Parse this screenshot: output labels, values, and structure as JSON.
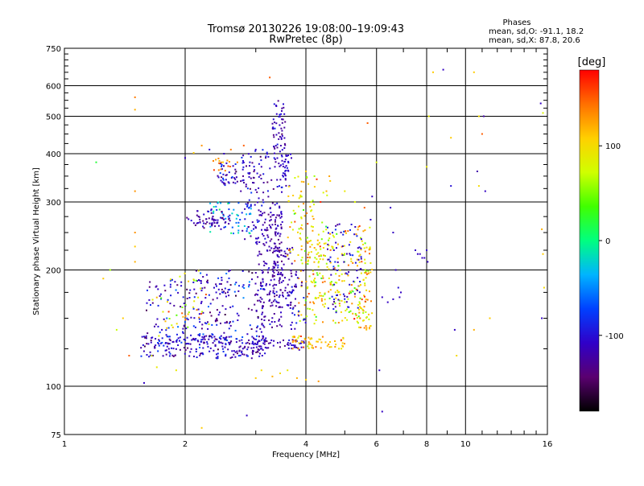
{
  "chart_data": {
    "type": "scatter",
    "title": "Tromsø 20130226 19:08:00–19:09:43",
    "subtitle": "RwPretec (8p)",
    "xlabel": "Frequency [MHz]",
    "ylabel": "Stationary phase Virtual Height [km]",
    "x_scale": "log",
    "y_scale": "log",
    "xlim": [
      1,
      16
    ],
    "ylim": [
      75,
      750
    ],
    "x_ticks": [
      1,
      2,
      4,
      6,
      8,
      10,
      16
    ],
    "x_tick_labels": [
      "1",
      "2",
      "4",
      "6",
      "8",
      "10",
      "16"
    ],
    "x_minor_ticks": [
      3,
      5,
      7,
      9,
      11,
      12,
      13,
      14,
      15
    ],
    "y_ticks": [
      75,
      100,
      200,
      300,
      400,
      500,
      600,
      750
    ],
    "y_tick_labels": [
      "75",
      "100",
      "200",
      "300",
      "400",
      "500",
      "600",
      "750"
    ],
    "y_minor_ticks": [
      125,
      150,
      175,
      225,
      250,
      275,
      325,
      350,
      375,
      425,
      450,
      475,
      525,
      550,
      575,
      625,
      650,
      675,
      700,
      725
    ],
    "grid": true,
    "phases_title": "Phases",
    "phases_o": "mean, sd,O: -91.1, 18.2",
    "phases_x": "mean, sd,X:  87.8, 20.6",
    "colorbar": {
      "label": "[deg]",
      "range": [
        -180,
        180
      ],
      "ticks": [
        100,
        0,
        -100
      ],
      "tick_labels": [
        "100",
        "0",
        "-100"
      ]
    },
    "series": [
      {
        "points": [
          [
            1.5,
            560,
            140
          ],
          [
            1.5,
            520,
            120
          ],
          [
            1.5,
            320,
            130
          ],
          [
            1.5,
            250,
            130
          ],
          [
            1.5,
            230,
            110
          ],
          [
            1.5,
            210,
            120
          ],
          [
            1.2,
            380,
            20
          ],
          [
            1.25,
            190,
            110
          ],
          [
            1.3,
            200,
            60
          ],
          [
            1.35,
            140,
            70
          ],
          [
            1.4,
            150,
            110
          ],
          [
            1.45,
            120,
            150
          ],
          [
            1.65,
            120,
            80
          ],
          [
            1.7,
            112,
            90
          ],
          [
            1.72,
            135,
            80
          ],
          [
            1.75,
            140,
            -110
          ],
          [
            1.8,
            150,
            -60
          ],
          [
            1.9,
            110,
            90
          ],
          [
            2.0,
            390,
            -110
          ],
          [
            2.1,
            402,
            110
          ],
          [
            2.2,
            420,
            130
          ],
          [
            2.3,
            410,
            -100
          ],
          [
            2.5,
            400,
            -110
          ],
          [
            2.6,
            410,
            140
          ],
          [
            2.7,
            380,
            130
          ],
          [
            2.8,
            420,
            150
          ],
          [
            2.9,
            380,
            -100
          ],
          [
            3.0,
            410,
            -110
          ],
          [
            3.1,
            370,
            -120
          ],
          [
            3.25,
            630,
            150
          ],
          [
            2.85,
            84,
            -110
          ],
          [
            2.2,
            78,
            110
          ],
          [
            3.0,
            105,
            110
          ],
          [
            3.1,
            110,
            100
          ],
          [
            3.3,
            106,
            120
          ],
          [
            3.45,
            108,
            100
          ],
          [
            3.6,
            110,
            90
          ],
          [
            3.8,
            105,
            120
          ],
          [
            4.0,
            104,
            110
          ],
          [
            4.3,
            103,
            130
          ],
          [
            1.58,
            102,
            -110
          ],
          [
            4.0,
            360,
            110
          ],
          [
            4.2,
            350,
            60
          ],
          [
            4.35,
            300,
            170
          ],
          [
            4.5,
            320,
            120
          ],
          [
            4.6,
            340,
            110
          ],
          [
            5.0,
            320,
            90
          ],
          [
            5.3,
            300,
            80
          ],
          [
            5.6,
            290,
            150
          ],
          [
            5.8,
            270,
            -110
          ],
          [
            5.85,
            310,
            -110
          ],
          [
            5.7,
            480,
            150
          ],
          [
            6.0,
            380,
            80
          ],
          [
            6.5,
            290,
            -110
          ],
          [
            6.6,
            250,
            -110
          ],
          [
            6.2,
            170,
            -110
          ],
          [
            6.4,
            165,
            -110
          ],
          [
            6.6,
            168,
            -110
          ],
          [
            6.9,
            175,
            -110
          ],
          [
            6.8,
            180,
            -100
          ],
          [
            6.85,
            170,
            -110
          ],
          [
            6.2,
            86,
            -110
          ],
          [
            6.1,
            110,
            -110
          ],
          [
            6.7,
            200,
            -110
          ],
          [
            8.0,
            370,
            90
          ],
          [
            8.1,
            500,
            90
          ],
          [
            8.3,
            650,
            110
          ],
          [
            8.8,
            660,
            -110
          ],
          [
            9.2,
            440,
            110
          ],
          [
            9.2,
            330,
            -100
          ],
          [
            9.4,
            140,
            -110
          ],
          [
            9.5,
            120,
            100
          ],
          [
            10.5,
            650,
            110
          ],
          [
            10.8,
            500,
            100
          ],
          [
            11.1,
            500,
            -120
          ],
          [
            11.0,
            450,
            150
          ],
          [
            10.7,
            360,
            -120
          ],
          [
            10.8,
            330,
            100
          ],
          [
            11.2,
            320,
            -110
          ],
          [
            11.5,
            150,
            110
          ],
          [
            10.5,
            140,
            120
          ],
          [
            15.4,
            540,
            -110
          ],
          [
            15.6,
            510,
            80
          ],
          [
            15.5,
            255,
            120
          ],
          [
            15.5,
            150,
            -110
          ],
          [
            15.6,
            220,
            110
          ],
          [
            15.7,
            180,
            100
          ],
          [
            7.5,
            225,
            -110
          ],
          [
            7.6,
            220,
            -110
          ],
          [
            7.7,
            220,
            -110
          ],
          [
            7.8,
            215,
            -110
          ],
          [
            7.9,
            215,
            -110
          ],
          [
            8.0,
            225,
            -110
          ],
          [
            8.05,
            210,
            -110
          ]
        ],
        "clusters": [
          {
            "fmin": 1.55,
            "fmax": 3.2,
            "hmin": 118,
            "hmax": 135,
            "n": 200,
            "phase": -110,
            "sd": 18
          },
          {
            "fmin": 1.6,
            "fmax": 2.6,
            "hmin": 128,
            "hmax": 190,
            "n": 150,
            "phase": -110,
            "sd": 22
          },
          {
            "fmin": 1.65,
            "fmax": 2.3,
            "hmin": 140,
            "hmax": 200,
            "n": 40,
            "phase": 95,
            "sd": 30
          },
          {
            "fmin": 2.1,
            "fmax": 3.15,
            "hmin": 130,
            "hmax": 200,
            "n": 110,
            "phase": -105,
            "sd": 30
          },
          {
            "fmin": 2.3,
            "fmax": 2.95,
            "hmin": 245,
            "hmax": 300,
            "n": 60,
            "phase": -60,
            "sd": 30
          },
          {
            "fmin": 2.1,
            "fmax": 2.6,
            "hmin": 255,
            "hmax": 285,
            "n": 40,
            "phase": -120,
            "sd": 15
          },
          {
            "fmin": 2.0,
            "fmax": 2.4,
            "hmin": 262,
            "hmax": 275,
            "n": 20,
            "phase": -115,
            "sd": 10
          },
          {
            "fmin": 2.4,
            "fmax": 2.7,
            "hmin": 330,
            "hmax": 380,
            "n": 40,
            "phase": -110,
            "sd": 20
          },
          {
            "fmin": 2.35,
            "fmax": 2.6,
            "hmin": 360,
            "hmax": 395,
            "n": 15,
            "phase": 135,
            "sd": 15
          },
          {
            "fmin": 2.75,
            "fmax": 3.5,
            "hmin": 240,
            "hmax": 410,
            "n": 130,
            "phase": -112,
            "sd": 15
          },
          {
            "fmin": 3.0,
            "fmax": 3.5,
            "hmin": 140,
            "hmax": 290,
            "n": 170,
            "phase": -118,
            "sd": 12
          },
          {
            "fmin": 3.3,
            "fmax": 3.55,
            "hmin": 380,
            "hmax": 560,
            "n": 60,
            "phase": -115,
            "sd": 15
          },
          {
            "fmin": 3.3,
            "fmax": 3.7,
            "hmin": 160,
            "hmax": 230,
            "n": 80,
            "phase": -115,
            "sd": 15
          },
          {
            "fmin": 3.5,
            "fmax": 3.7,
            "hmin": 330,
            "hmax": 400,
            "n": 30,
            "phase": -110,
            "sd": 10
          },
          {
            "fmin": 2.8,
            "fmax": 4.0,
            "hmin": 124,
            "hmax": 132,
            "n": 60,
            "phase": -115,
            "sd": 10
          },
          {
            "fmin": 3.7,
            "fmax": 5.0,
            "hmin": 125,
            "hmax": 135,
            "n": 60,
            "phase": 115,
            "sd": 25
          },
          {
            "fmin": 3.8,
            "fmax": 5.8,
            "hmin": 145,
            "hmax": 260,
            "n": 260,
            "phase": 95,
            "sd": 35
          },
          {
            "fmin": 4.5,
            "fmax": 5.5,
            "hmin": 155,
            "hmax": 265,
            "n": 80,
            "phase": -105,
            "sd": 15
          },
          {
            "fmin": 3.6,
            "fmax": 4.6,
            "hmin": 210,
            "hmax": 350,
            "n": 70,
            "phase": 95,
            "sd": 30
          },
          {
            "fmin": 5.4,
            "fmax": 5.85,
            "hmin": 140,
            "hmax": 230,
            "n": 50,
            "phase": 110,
            "sd": 25
          },
          {
            "fmin": 3.6,
            "fmax": 4.0,
            "hmin": 140,
            "hmax": 200,
            "n": 40,
            "phase": -110,
            "sd": 15
          }
        ]
      }
    ]
  }
}
